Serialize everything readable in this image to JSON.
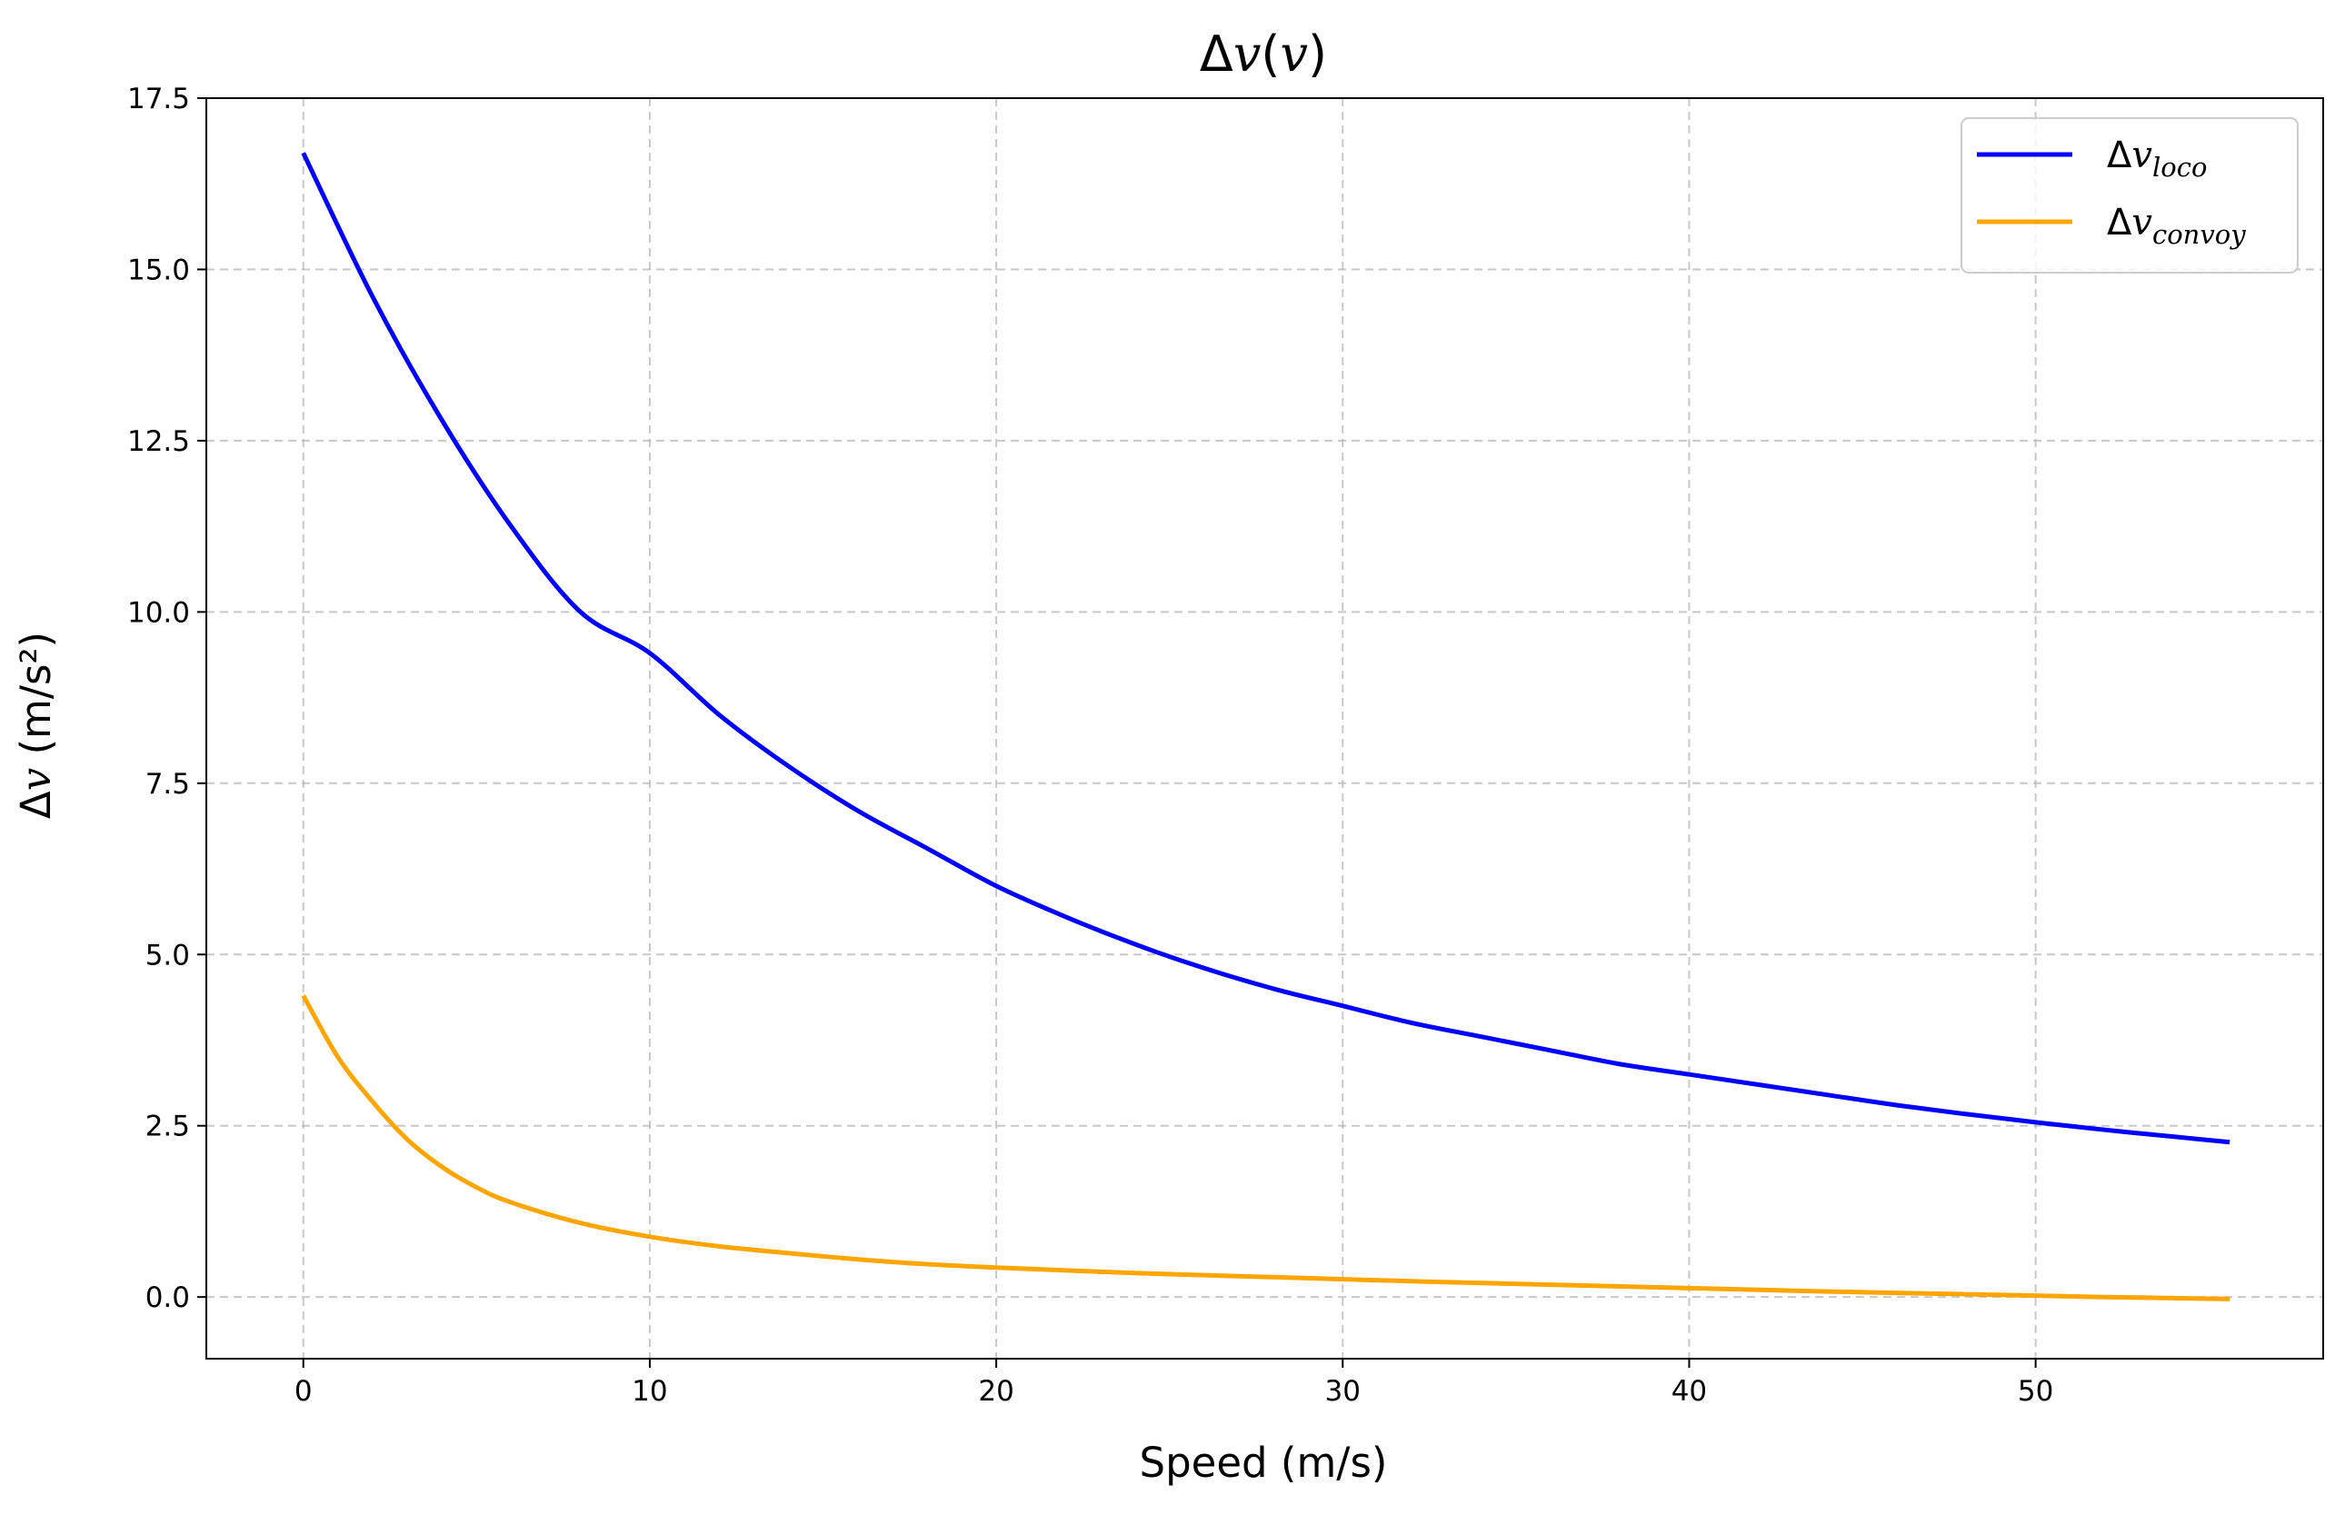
{
  "chart_data": {
    "type": "line",
    "title": "Δv(v)",
    "xlabel": "Speed (m/s)",
    "ylabel": "Δv (m/s²)",
    "xlim": [
      -2.8,
      58.3
    ],
    "ylim": [
      -0.9,
      17.5
    ],
    "xticks": [
      0,
      10,
      20,
      30,
      40,
      50
    ],
    "yticks": [
      0.0,
      2.5,
      5.0,
      7.5,
      10.0,
      12.5,
      15.0,
      17.5
    ],
    "xtick_labels": [
      "0",
      "10",
      "20",
      "30",
      "40",
      "50"
    ],
    "ytick_labels": [
      "0.0",
      "2.5",
      "5.0",
      "7.5",
      "10.0",
      "12.5",
      "15.0",
      "17.5"
    ],
    "grid": true,
    "grid_style": "dashed",
    "legend_position": "top-right",
    "series": [
      {
        "name": "Δv",
        "subscript": "loco",
        "color": "#0000ff",
        "x": [
          0,
          2,
          4,
          6,
          8,
          10,
          12,
          14,
          16,
          18,
          20,
          22,
          24,
          26,
          28,
          30,
          32,
          34,
          36,
          38,
          40,
          42,
          44,
          46,
          48,
          50,
          52,
          54,
          55.6
        ],
        "y": [
          16.7,
          14.6,
          12.8,
          11.25,
          10.0,
          9.4,
          8.5,
          7.75,
          7.1,
          6.55,
          6.0,
          5.55,
          5.15,
          4.8,
          4.5,
          4.25,
          4.0,
          3.8,
          3.6,
          3.4,
          3.25,
          3.1,
          2.95,
          2.8,
          2.67,
          2.55,
          2.44,
          2.34,
          2.26
        ]
      },
      {
        "name": "Δv",
        "subscript": "convoy",
        "color": "#ffa500",
        "x": [
          0,
          1,
          2,
          3,
          4,
          5,
          6,
          8,
          10,
          12,
          14,
          16,
          18,
          20,
          24,
          28,
          32,
          36,
          40,
          44,
          48,
          52,
          55.6
        ],
        "y": [
          4.4,
          3.5,
          2.85,
          2.3,
          1.9,
          1.6,
          1.38,
          1.08,
          0.88,
          0.74,
          0.64,
          0.55,
          0.48,
          0.43,
          0.35,
          0.29,
          0.23,
          0.18,
          0.13,
          0.08,
          0.04,
          0.0,
          -0.03
        ]
      }
    ]
  }
}
